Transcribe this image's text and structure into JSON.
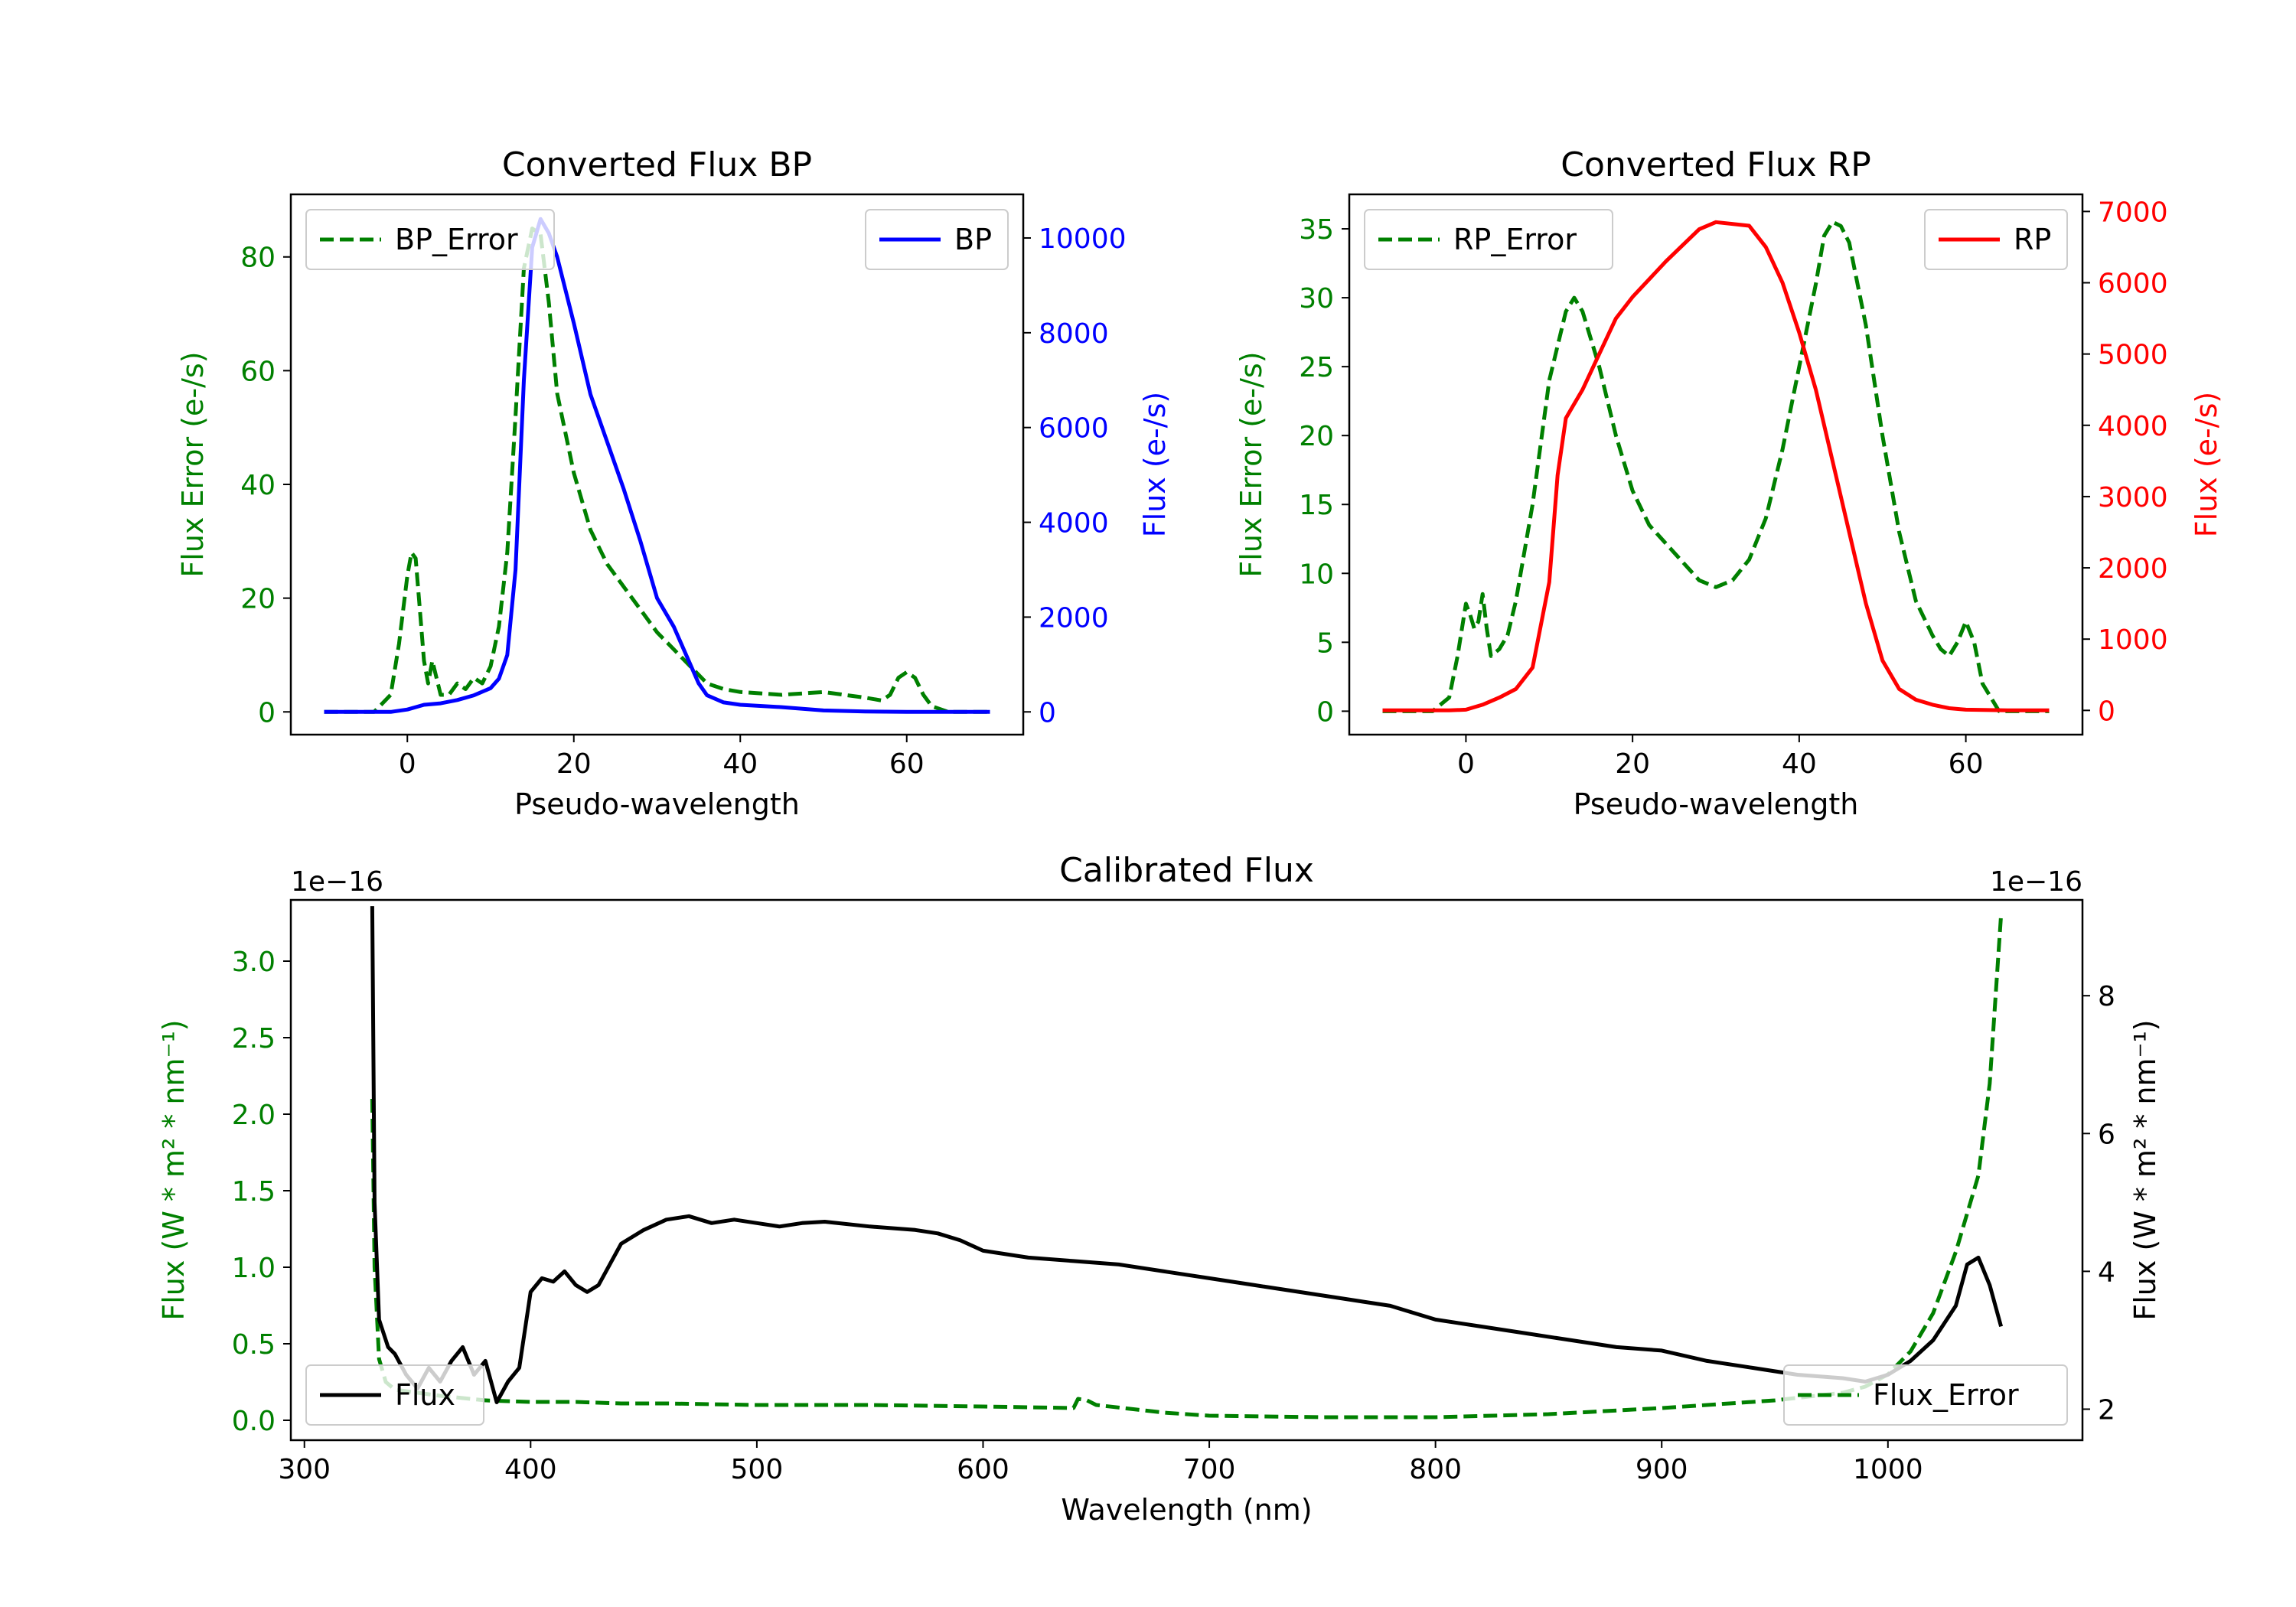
{
  "chart_data": [
    {
      "type": "line",
      "title": "Converted Flux BP",
      "xlabel": "Pseudo-wavelength",
      "ylabel": "Flux Error (e-/s)",
      "ylabel_right": "Flux (e-/s)",
      "xlim": [
        -14,
        74
      ],
      "ylim": [
        -4,
        91
      ],
      "ylim_right": [
        -480,
        10920
      ],
      "xticks": [
        0,
        20,
        40,
        60
      ],
      "yticks": [
        0,
        20,
        40,
        60,
        80
      ],
      "yticks_right": [
        0,
        2000,
        4000,
        6000,
        8000,
        10000
      ],
      "left_color": "#008000",
      "right_color": "#0000ff",
      "series": [
        {
          "name": "BP_Error",
          "axis": "left",
          "style": "dashed",
          "color": "#008000",
          "x": [
            -10,
            -4,
            -2,
            -1,
            0,
            0.5,
            1,
            1.5,
            2,
            2.5,
            3,
            3.5,
            4,
            5,
            6,
            7,
            8,
            9,
            10,
            11,
            12,
            13,
            14,
            15,
            16,
            17,
            18,
            20,
            22,
            24,
            26,
            28,
            30,
            32,
            34,
            36,
            38,
            40,
            45,
            50,
            55,
            57,
            58,
            59,
            60,
            61,
            62,
            63,
            65,
            70
          ],
          "y": [
            0,
            0,
            3,
            12,
            24,
            28,
            27,
            18,
            9,
            5,
            9,
            6,
            3,
            3,
            5,
            4,
            6,
            5,
            8,
            15,
            28,
            52,
            78,
            85,
            84,
            72,
            56,
            42,
            32,
            26,
            22,
            18,
            14,
            11,
            8,
            5,
            4,
            3.5,
            3,
            3.5,
            2.5,
            2,
            3,
            6,
            7,
            6,
            3,
            1,
            0,
            0
          ]
        },
        {
          "name": "BP",
          "axis": "right",
          "style": "solid",
          "color": "#0000ff",
          "x": [
            -10,
            -4,
            -2,
            0,
            1,
            2,
            4,
            6,
            8,
            10,
            11,
            12,
            13,
            14,
            15,
            16,
            17,
            18,
            20,
            22,
            24,
            26,
            28,
            30,
            32,
            34,
            35,
            36,
            38,
            40,
            45,
            50,
            55,
            60,
            65,
            70
          ],
          "y": [
            0,
            0,
            0,
            50,
            100,
            150,
            180,
            250,
            350,
            500,
            700,
            1200,
            3000,
            7000,
            9800,
            10400,
            10100,
            9600,
            8200,
            6700,
            5700,
            4700,
            3600,
            2400,
            1800,
            1000,
            600,
            350,
            200,
            150,
            100,
            30,
            10,
            0,
            0,
            0
          ]
        }
      ],
      "legend": [
        {
          "label": "BP_Error",
          "position": "upper-left"
        },
        {
          "label": "BP",
          "position": "upper-right"
        }
      ]
    },
    {
      "type": "line",
      "title": "Converted Flux RP",
      "xlabel": "Pseudo-wavelength",
      "ylabel": "Flux Error (e-/s)",
      "ylabel_right": "Flux (e-/s)",
      "xlim": [
        -14,
        74
      ],
      "ylim": [
        -1.7,
        37.5
      ],
      "ylim_right": [
        -340,
        7240
      ],
      "xticks": [
        0,
        20,
        40,
        60
      ],
      "yticks": [
        0,
        5,
        10,
        15,
        20,
        25,
        30,
        35
      ],
      "yticks_right": [
        0,
        1000,
        2000,
        3000,
        4000,
        5000,
        6000,
        7000
      ],
      "left_color": "#008000",
      "right_color": "#ff0000",
      "series": [
        {
          "name": "RP_Error",
          "axis": "left",
          "style": "dashed",
          "color": "#008000",
          "x": [
            -10,
            -4,
            -2,
            -1,
            0,
            0.5,
            1,
            1.5,
            2,
            2.5,
            3,
            4,
            5,
            6,
            8,
            10,
            12,
            13,
            14,
            16,
            18,
            20,
            22,
            25,
            28,
            30,
            32,
            34,
            36,
            38,
            40,
            42,
            43,
            44,
            45,
            46,
            48,
            50,
            52,
            54,
            56,
            57,
            58,
            59,
            60,
            61,
            62,
            64,
            70
          ],
          "y": [
            0,
            0,
            1,
            4,
            7.8,
            7,
            6,
            6.5,
            8.5,
            6,
            4,
            4.5,
            5.5,
            8,
            15,
            24,
            29,
            30,
            29,
            25,
            20,
            16,
            13.5,
            11.5,
            9.5,
            9,
            9.5,
            11,
            14,
            19,
            25,
            31,
            34.5,
            35.5,
            35.2,
            34,
            28,
            20,
            13,
            8,
            5.5,
            4.5,
            4,
            5,
            6.5,
            5,
            2,
            0,
            0
          ]
        },
        {
          "name": "RP",
          "axis": "right",
          "style": "solid",
          "color": "#ff0000",
          "x": [
            -10,
            -2,
            0,
            2,
            4,
            6,
            8,
            10,
            11,
            12,
            13,
            14,
            16,
            18,
            20,
            24,
            28,
            30,
            34,
            36,
            38,
            40,
            42,
            44,
            46,
            48,
            50,
            52,
            54,
            56,
            58,
            60,
            65,
            70
          ],
          "y": [
            0,
            0,
            10,
            80,
            180,
            300,
            600,
            1800,
            3300,
            4100,
            4300,
            4500,
            5000,
            5500,
            5800,
            6300,
            6750,
            6850,
            6800,
            6500,
            6000,
            5300,
            4500,
            3500,
            2500,
            1500,
            700,
            300,
            150,
            80,
            30,
            10,
            0,
            0
          ]
        }
      ],
      "legend": [
        {
          "label": "RP_Error",
          "position": "upper-left"
        },
        {
          "label": "RP",
          "position": "upper-right"
        }
      ]
    },
    {
      "type": "line",
      "title": "Calibrated Flux",
      "xlabel": "Wavelength (nm)",
      "ylabel": "Flux (W * m² * nm⁻¹)",
      "ylabel_right": "Flux (W * m² * nm⁻¹)",
      "offset_left": "1e−16",
      "offset_right": "1e−16",
      "xlim": [
        294,
        1086
      ],
      "ylim": [
        -0.13,
        3.4
      ],
      "ylim_right": [
        1.55,
        9.39
      ],
      "xticks": [
        300,
        400,
        500,
        600,
        700,
        800,
        900,
        1000
      ],
      "yticks": [
        0.0,
        0.5,
        1.0,
        1.5,
        2.0,
        2.5,
        3.0
      ],
      "ytick_labels": [
        "0.0",
        "0.5",
        "1.0",
        "1.5",
        "2.0",
        "2.5",
        "3.0"
      ],
      "yticks_right": [
        2,
        4,
        6,
        8
      ],
      "left_color": "#008000",
      "right_color": "#000000",
      "series": [
        {
          "name": "Flux_Error",
          "axis": "left",
          "style": "dashed",
          "color": "#008000",
          "x": [
            330,
            331,
            333,
            336,
            340,
            350,
            360,
            380,
            400,
            420,
            440,
            460,
            500,
            550,
            600,
            640,
            642,
            646,
            650,
            680,
            700,
            750,
            800,
            850,
            900,
            950,
            980,
            990,
            1000,
            1010,
            1020,
            1030,
            1040,
            1045,
            1050
          ],
          "y": [
            2.1,
            1.0,
            0.4,
            0.25,
            0.2,
            0.18,
            0.16,
            0.13,
            0.12,
            0.12,
            0.11,
            0.11,
            0.1,
            0.1,
            0.09,
            0.08,
            0.14,
            0.13,
            0.1,
            0.05,
            0.03,
            0.02,
            0.02,
            0.04,
            0.08,
            0.13,
            0.18,
            0.22,
            0.3,
            0.45,
            0.7,
            1.1,
            1.6,
            2.2,
            3.3
          ]
        },
        {
          "name": "Flux",
          "axis": "right",
          "style": "solid",
          "color": "#000000",
          "x": [
            330,
            331,
            333,
            335,
            337,
            340,
            345,
            350,
            355,
            360,
            365,
            370,
            375,
            380,
            385,
            390,
            395,
            400,
            405,
            410,
            415,
            420,
            425,
            430,
            440,
            450,
            460,
            470,
            480,
            490,
            500,
            510,
            520,
            530,
            550,
            570,
            580,
            590,
            600,
            620,
            640,
            660,
            680,
            700,
            720,
            740,
            760,
            780,
            800,
            820,
            840,
            860,
            880,
            900,
            920,
            940,
            960,
            980,
            990,
            1000,
            1010,
            1020,
            1030,
            1035,
            1040,
            1045,
            1050
          ],
          "y": [
            9.3,
            5.0,
            3.3,
            3.1,
            2.9,
            2.8,
            2.5,
            2.3,
            2.6,
            2.4,
            2.7,
            2.9,
            2.5,
            2.7,
            2.1,
            2.4,
            2.6,
            3.7,
            3.9,
            3.85,
            4.0,
            3.8,
            3.7,
            3.8,
            4.4,
            4.6,
            4.75,
            4.8,
            4.7,
            4.75,
            4.7,
            4.65,
            4.7,
            4.72,
            4.65,
            4.6,
            4.55,
            4.45,
            4.3,
            4.2,
            4.15,
            4.1,
            4.0,
            3.9,
            3.8,
            3.7,
            3.6,
            3.5,
            3.3,
            3.2,
            3.1,
            3.0,
            2.9,
            2.85,
            2.7,
            2.6,
            2.5,
            2.45,
            2.4,
            2.5,
            2.7,
            3.0,
            3.5,
            4.1,
            4.2,
            3.8,
            3.2
          ]
        }
      ],
      "legend": [
        {
          "label": "Flux",
          "position": "lower-left"
        },
        {
          "label": "Flux_Error",
          "position": "lower-right"
        }
      ]
    }
  ]
}
